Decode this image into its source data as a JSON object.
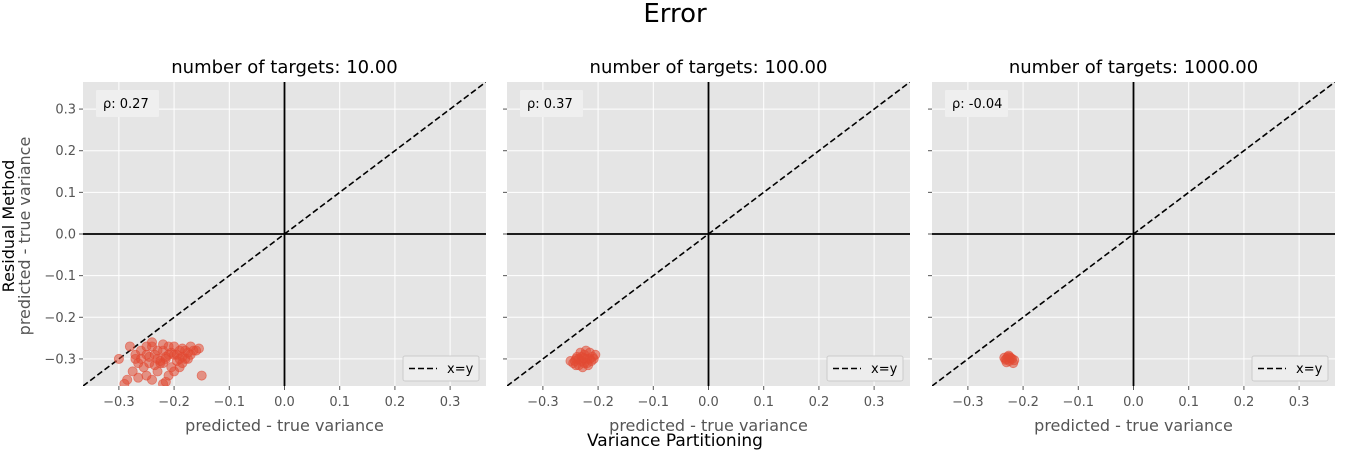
{
  "figure": {
    "suptitle": "Error",
    "row_label_main": "Residual Method",
    "row_label_sub": "predicted - true variance",
    "bottom_label": "Variance Partitioning"
  },
  "style": {
    "panel_bg": "#e5e5e5",
    "grid": "#ffffff",
    "point_color": "#e24a33",
    "axis_line": "#000000"
  },
  "chart_data": [
    {
      "type": "scatter",
      "title": "number of targets: 10.00",
      "xlabel": "predicted - true variance",
      "ylabel": "",
      "xlim": [
        -0.365,
        0.365
      ],
      "ylim": [
        -0.365,
        0.365
      ],
      "xticks": [
        -0.3,
        -0.2,
        -0.1,
        0.0,
        0.1,
        0.2,
        0.3
      ],
      "yticks": [
        -0.3,
        -0.2,
        -0.1,
        0.0,
        0.1,
        0.2,
        0.3
      ],
      "xtick_labels": [
        "−0.3",
        "−0.2",
        "−0.1",
        "0.0",
        "0.1",
        "0.2",
        "0.3"
      ],
      "ytick_labels": [
        "−0.3",
        "−0.2",
        "−0.1",
        "0.0",
        "0.1",
        "0.2",
        "0.3"
      ],
      "show_yticklabels": true,
      "grid": true,
      "reference_line": {
        "label": "x=y",
        "style": "dashed"
      },
      "legend": {
        "placement": "bottom-right",
        "entries": [
          "x=y"
        ]
      },
      "annotation": "ρ: 0.27",
      "points": [
        [
          -0.28,
          -0.27
        ],
        [
          -0.27,
          -0.3
        ],
        [
          -0.26,
          -0.28
        ],
        [
          -0.25,
          -0.29
        ],
        [
          -0.24,
          -0.27
        ],
        [
          -0.23,
          -0.3
        ],
        [
          -0.22,
          -0.28
        ],
        [
          -0.21,
          -0.29
        ],
        [
          -0.2,
          -0.27
        ],
        [
          -0.19,
          -0.3
        ],
        [
          -0.18,
          -0.28
        ],
        [
          -0.17,
          -0.29
        ],
        [
          -0.16,
          -0.28
        ],
        [
          -0.15,
          -0.34
        ],
        [
          -0.155,
          -0.275
        ],
        [
          -0.245,
          -0.31
        ],
        [
          -0.235,
          -0.29
        ],
        [
          -0.225,
          -0.31
        ],
        [
          -0.215,
          -0.3
        ],
        [
          -0.205,
          -0.32
        ],
        [
          -0.195,
          -0.29
        ],
        [
          -0.185,
          -0.31
        ],
        [
          -0.175,
          -0.3
        ],
        [
          -0.165,
          -0.28
        ],
        [
          -0.255,
          -0.32
        ],
        [
          -0.265,
          -0.31
        ],
        [
          -0.275,
          -0.33
        ],
        [
          -0.285,
          -0.35
        ],
        [
          -0.29,
          -0.36
        ],
        [
          -0.3,
          -0.3
        ],
        [
          -0.25,
          -0.34
        ],
        [
          -0.24,
          -0.35
        ],
        [
          -0.23,
          -0.33
        ],
        [
          -0.22,
          -0.36
        ],
        [
          -0.21,
          -0.34
        ],
        [
          -0.2,
          -0.33
        ],
        [
          -0.19,
          -0.32
        ],
        [
          -0.22,
          -0.31
        ],
        [
          -0.23,
          -0.28
        ],
        [
          -0.21,
          -0.27
        ],
        [
          -0.2,
          -0.29
        ],
        [
          -0.19,
          -0.28
        ],
        [
          -0.18,
          -0.3
        ],
        [
          -0.24,
          -0.26
        ],
        [
          -0.22,
          -0.265
        ],
        [
          -0.17,
          -0.27
        ],
        [
          -0.26,
          -0.3
        ],
        [
          -0.27,
          -0.29
        ],
        [
          -0.25,
          -0.27
        ],
        [
          -0.205,
          -0.285
        ],
        [
          -0.215,
          -0.295
        ],
        [
          -0.225,
          -0.305
        ],
        [
          -0.235,
          -0.315
        ],
        [
          -0.245,
          -0.295
        ],
        [
          -0.195,
          -0.305
        ],
        [
          -0.185,
          -0.295
        ],
        [
          -0.175,
          -0.285
        ],
        [
          -0.265,
          -0.345
        ],
        [
          -0.215,
          -0.355
        ],
        [
          -0.185,
          -0.275
        ]
      ]
    },
    {
      "type": "scatter",
      "title": "number of targets: 100.00",
      "xlabel": "predicted - true variance",
      "ylabel": "",
      "xlim": [
        -0.365,
        0.365
      ],
      "ylim": [
        -0.365,
        0.365
      ],
      "xticks": [
        -0.3,
        -0.2,
        -0.1,
        0.0,
        0.1,
        0.2,
        0.3
      ],
      "yticks": [
        -0.3,
        -0.2,
        -0.1,
        0.0,
        0.1,
        0.2,
        0.3
      ],
      "xtick_labels": [
        "−0.3",
        "−0.2",
        "−0.1",
        "0.0",
        "0.1",
        "0.2",
        "0.3"
      ],
      "ytick_labels": [],
      "show_yticklabels": false,
      "grid": true,
      "reference_line": {
        "label": "x=y",
        "style": "dashed"
      },
      "legend": {
        "placement": "bottom-right",
        "entries": [
          "x=y"
        ]
      },
      "annotation": "ρ: 0.37",
      "points": [
        [
          -0.25,
          -0.305
        ],
        [
          -0.245,
          -0.31
        ],
        [
          -0.24,
          -0.3
        ],
        [
          -0.235,
          -0.315
        ],
        [
          -0.23,
          -0.295
        ],
        [
          -0.225,
          -0.31
        ],
        [
          -0.22,
          -0.3
        ],
        [
          -0.215,
          -0.285
        ],
        [
          -0.21,
          -0.295
        ],
        [
          -0.205,
          -0.29
        ],
        [
          -0.24,
          -0.315
        ],
        [
          -0.23,
          -0.305
        ],
        [
          -0.22,
          -0.31
        ],
        [
          -0.215,
          -0.3
        ],
        [
          -0.225,
          -0.29
        ],
        [
          -0.235,
          -0.3
        ],
        [
          -0.228,
          -0.32
        ],
        [
          -0.218,
          -0.315
        ],
        [
          -0.212,
          -0.305
        ],
        [
          -0.232,
          -0.285
        ],
        [
          -0.222,
          -0.28
        ],
        [
          -0.238,
          -0.295
        ],
        [
          -0.242,
          -0.305
        ],
        [
          -0.208,
          -0.3
        ],
        [
          -0.226,
          -0.298
        ]
      ]
    },
    {
      "type": "scatter",
      "title": "number of targets: 1000.00",
      "xlabel": "predicted - true variance",
      "ylabel": "",
      "xlim": [
        -0.365,
        0.365
      ],
      "ylim": [
        -0.365,
        0.365
      ],
      "xticks": [
        -0.3,
        -0.2,
        -0.1,
        0.0,
        0.1,
        0.2,
        0.3
      ],
      "yticks": [
        -0.3,
        -0.2,
        -0.1,
        0.0,
        0.1,
        0.2,
        0.3
      ],
      "xtick_labels": [
        "−0.3",
        "−0.2",
        "−0.1",
        "0.0",
        "0.1",
        "0.2",
        "0.3"
      ],
      "ytick_labels": [],
      "show_yticklabels": false,
      "grid": true,
      "reference_line": {
        "label": "x=y",
        "style": "dashed"
      },
      "legend": {
        "placement": "bottom-right",
        "entries": [
          "x=y"
        ]
      },
      "annotation": "ρ: -0.04",
      "points": [
        [
          -0.23,
          -0.3
        ],
        [
          -0.228,
          -0.295
        ],
        [
          -0.225,
          -0.305
        ],
        [
          -0.222,
          -0.298
        ],
        [
          -0.232,
          -0.302
        ],
        [
          -0.226,
          -0.292
        ],
        [
          -0.22,
          -0.3
        ],
        [
          -0.218,
          -0.31
        ],
        [
          -0.23,
          -0.308
        ],
        [
          -0.224,
          -0.296
        ],
        [
          -0.234,
          -0.297
        ],
        [
          -0.216,
          -0.303
        ]
      ]
    }
  ]
}
